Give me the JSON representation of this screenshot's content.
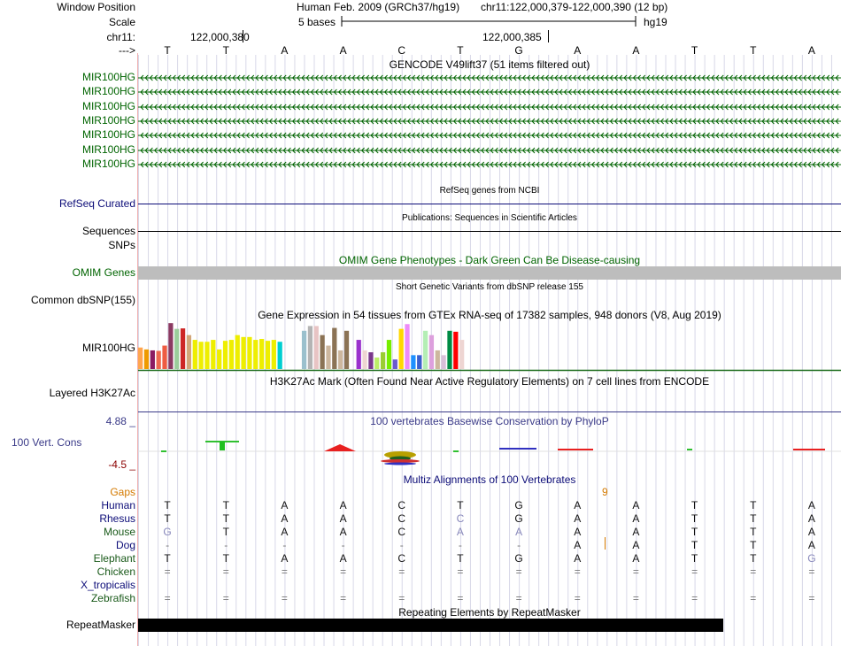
{
  "header": {
    "window_position_label": "Window Position",
    "scale_label": "Scale",
    "chrom_label": "chr11:",
    "arrow_label": "--->",
    "assembly_text": "Human Feb. 2009 (GRCh37/hg19)",
    "position_text": "chr11:122,000,379-122,000,390 (12 bp)",
    "scale_text": "5 bases",
    "scale_db": "hg19",
    "coord_1": "122,000,380",
    "coord_2": "122,000,385",
    "bases": [
      "T",
      "T",
      "A",
      "A",
      "C",
      "T",
      "G",
      "A",
      "A",
      "T",
      "T",
      "A"
    ]
  },
  "gencode": {
    "title": "GENCODE V49lift37 (51 items filtered out)",
    "color": "#006400",
    "items": [
      "MIR100HG",
      "MIR100HG",
      "MIR100HG",
      "MIR100HG",
      "MIR100HG",
      "MIR100HG",
      "MIR100HG"
    ]
  },
  "refseq": {
    "title": "RefSeq genes from NCBI",
    "label": "RefSeq Curated",
    "color": "#0c0c78"
  },
  "publications": {
    "title": "Publications: Sequences in Scientific Articles",
    "label": "Sequences"
  },
  "snps": {
    "label": "SNPs"
  },
  "omim": {
    "title": "OMIM Gene Phenotypes - Dark Green Can Be Disease-causing",
    "label": "OMIM Genes",
    "color": "#006400"
  },
  "dbsnp": {
    "title": "Short Genetic Variants from dbSNP release 155",
    "label": "Common dbSNP(155)"
  },
  "gtex": {
    "title": "Gene Expression in 54 tissues from GTEx RNA-seq of 17382 samples, 948 donors (V8, Aug 2019)",
    "label": "MIR100HG",
    "bars": [
      {
        "v": 0.45,
        "c": "#FFA54F"
      },
      {
        "v": 0.41,
        "c": "#EE9A00"
      },
      {
        "v": 0.39,
        "c": "#8B1C62"
      },
      {
        "v": 0.38,
        "c": "#EE6A50"
      },
      {
        "v": 0.49,
        "c": "#EE5C42"
      },
      {
        "v": 0.96,
        "c": "#8B3A62"
      },
      {
        "v": 0.84,
        "c": "#9BCD9B"
      },
      {
        "v": 0.85,
        "c": "#CD2626"
      },
      {
        "v": 0.71,
        "c": "#D2A679"
      },
      {
        "v": 0.61,
        "c": "#EEEE00"
      },
      {
        "v": 0.57,
        "c": "#EEEE00"
      },
      {
        "v": 0.57,
        "c": "#EEEE00"
      },
      {
        "v": 0.61,
        "c": "#EEEE00"
      },
      {
        "v": 0.41,
        "c": "#EEEE00"
      },
      {
        "v": 0.59,
        "c": "#EEEE00"
      },
      {
        "v": 0.61,
        "c": "#EEEE00"
      },
      {
        "v": 0.71,
        "c": "#EEEE00"
      },
      {
        "v": 0.67,
        "c": "#EEEE00"
      },
      {
        "v": 0.67,
        "c": "#EEEE00"
      },
      {
        "v": 0.61,
        "c": "#EEEE00"
      },
      {
        "v": 0.63,
        "c": "#EEEE00"
      },
      {
        "v": 0.59,
        "c": "#EEEE00"
      },
      {
        "v": 0.61,
        "c": "#EEEE00"
      },
      {
        "v": 0.57,
        "c": "#00CED1"
      },
      {
        "v": 0.0,
        "c": "#FFFFFF"
      },
      {
        "v": 0.0,
        "c": "#FFFFFF"
      },
      {
        "v": 0.0,
        "c": "#FFFFFF"
      },
      {
        "v": 0.8,
        "c": "#9AC0CD"
      },
      {
        "v": 0.9,
        "c": "#B4B4B4"
      },
      {
        "v": 0.9,
        "c": "#E8C4C4"
      },
      {
        "v": 0.71,
        "c": "#8B7355"
      },
      {
        "v": 0.49,
        "c": "#CDB79E"
      },
      {
        "v": 0.86,
        "c": "#8B7355"
      },
      {
        "v": 0.39,
        "c": "#CDB79E"
      },
      {
        "v": 0.8,
        "c": "#8B7355"
      },
      {
        "v": 0.0,
        "c": "#FFFFFF"
      },
      {
        "v": 0.61,
        "c": "#9A32CD"
      },
      {
        "v": 0.39,
        "c": "#EED5D2"
      },
      {
        "v": 0.35,
        "c": "#7A378B"
      },
      {
        "v": 0.24,
        "c": "#BCEE68"
      },
      {
        "v": 0.35,
        "c": "#9ACD32"
      },
      {
        "v": 0.61,
        "c": "#76EE00"
      },
      {
        "v": 0.2,
        "c": "#6A5ACD"
      },
      {
        "v": 0.84,
        "c": "#FFD700"
      },
      {
        "v": 0.94,
        "c": "#EE8AF8"
      },
      {
        "v": 0.29,
        "c": "#1E90FF"
      },
      {
        "v": 0.29,
        "c": "#3A5FCD"
      },
      {
        "v": 0.8,
        "c": "#B4EEB4"
      },
      {
        "v": 0.71,
        "c": "#DDA0DD"
      },
      {
        "v": 0.39,
        "c": "#CDB79E"
      },
      {
        "v": 0.29,
        "c": "#D8BFD8"
      },
      {
        "v": 0.8,
        "c": "#008B45"
      },
      {
        "v": 0.78,
        "c": "#FF0000"
      },
      {
        "v": 0.61,
        "c": "#EED5D2"
      }
    ]
  },
  "h3k27ac": {
    "title": "H3K27Ac Mark (Often Found Near Active Regulatory Elements) on 7 cell lines from ENCODE",
    "label": "Layered H3K27Ac"
  },
  "phylop": {
    "title": "100 vertebrates Basewise Conservation by PhyloP",
    "label": "100 Vert. Cons",
    "max_label": "4.88 _",
    "min_label": "-4.5 _",
    "title_color": "#3a3a88",
    "max_color": "#3a3a88",
    "min_color": "#8b0000"
  },
  "multiz": {
    "title": "Multiz Alignments of 100 Vertebrates",
    "title_color": "#0c0c78",
    "gaps_label": "Gaps",
    "gaps_color": "#d47a00",
    "gap_number": "9",
    "species": [
      {
        "name": "Human",
        "color": "#0c0c78",
        "seq": [
          "T",
          "T",
          "A",
          "A",
          "C",
          "T",
          "G",
          "A",
          "A",
          "T",
          "T",
          "A"
        ]
      },
      {
        "name": "Rhesus",
        "color": "#0c0c78",
        "seq": [
          "T",
          "T",
          "A",
          "A",
          "C",
          "C",
          "G",
          "A",
          "A",
          "T",
          "T",
          "A"
        ],
        "dim": [
          5
        ]
      },
      {
        "name": "Mouse",
        "color": "#1a5a1a",
        "seq": [
          "G",
          "T",
          "A",
          "A",
          "C",
          "A",
          "A",
          "A",
          "A",
          "T",
          "T",
          "A"
        ],
        "dim": [
          0,
          5,
          6
        ]
      },
      {
        "name": "Dog",
        "color": "#0c0c78",
        "seq": [
          "-",
          "-",
          "-",
          "-",
          "-",
          "-",
          "-",
          "A",
          "A",
          "T",
          "T",
          "A"
        ]
      },
      {
        "name": "Elephant",
        "color": "#1a5a1a",
        "seq": [
          "T",
          "T",
          "A",
          "A",
          "C",
          "T",
          "G",
          "A",
          "A",
          "T",
          "T",
          "G"
        ],
        "dim": [
          11
        ]
      },
      {
        "name": "Chicken",
        "color": "#1a5a1a",
        "seq": [
          "=",
          "=",
          "=",
          "=",
          "=",
          "=",
          "=",
          "=",
          "=",
          "=",
          "=",
          "="
        ]
      },
      {
        "name": "X_tropicalis",
        "color": "#0c0c78",
        "seq": [
          "",
          "",
          "",
          "",
          "",
          "",
          "",
          "",
          "",
          "",
          "",
          ""
        ]
      },
      {
        "name": "Zebrafish",
        "color": "#1a5a1a",
        "seq": [
          "=",
          "=",
          "=",
          "=",
          "=",
          "=",
          "=",
          "=",
          "=",
          "=",
          "=",
          "="
        ]
      }
    ]
  },
  "repeatmasker": {
    "title": "Repeating Elements by RepeatMasker",
    "label": "RepeatMasker"
  }
}
